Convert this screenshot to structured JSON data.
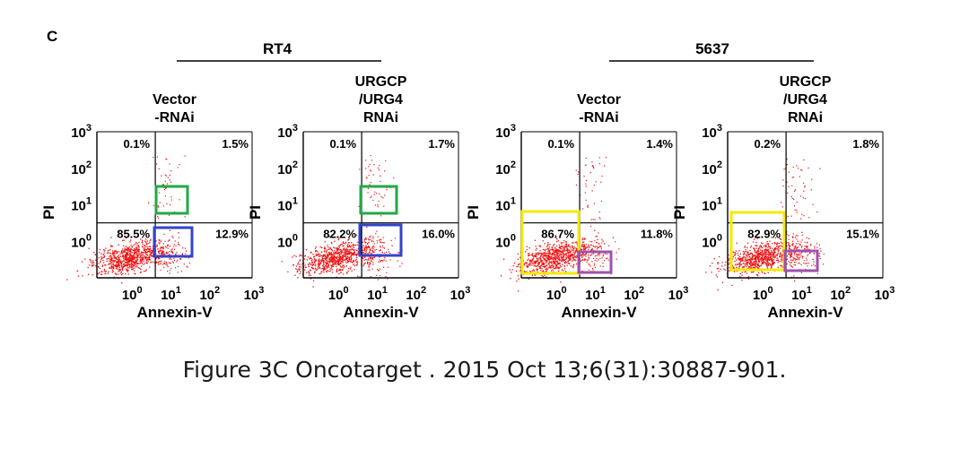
{
  "panel_letter": "C",
  "caption": "Figure 3C Oncotarget . 2015 Oct 13;6(31):30887-901.",
  "colors": {
    "dots": "#ee1111",
    "green_box": "#22aa44",
    "blue_box": "#3344cc",
    "yellow_box": "#f5ea00",
    "purple_box": "#a050b0"
  },
  "groups": [
    {
      "label": "RT4"
    },
    {
      "label": "5637"
    }
  ],
  "chart_data": [
    {
      "type": "scatter",
      "group": "RT4",
      "title_lines": [
        "Vector",
        "-RNAi"
      ],
      "xlabel": "Annexin-V",
      "ylabel": "PI",
      "x_scale": "log",
      "y_scale": "log",
      "xlim": [
        0.1,
        1000
      ],
      "ylim": [
        0.1,
        1000
      ],
      "x_ticks": [
        "10^0",
        "10^1",
        "10^2",
        "10^3"
      ],
      "y_ticks": [
        "10^0",
        "10^1",
        "10^2",
        "10^3"
      ],
      "quadrants": {
        "upper_left": "0.1%",
        "upper_right": "1.5%",
        "lower_left": "85.5%",
        "lower_right": "12.9%"
      },
      "highlight_boxes": [
        "green",
        "blue"
      ]
    },
    {
      "type": "scatter",
      "group": "RT4",
      "title_lines": [
        "URGCP",
        "/URG4",
        "RNAi"
      ],
      "xlabel": "Annexin-V",
      "ylabel": "PI",
      "x_scale": "log",
      "y_scale": "log",
      "xlim": [
        0.1,
        1000
      ],
      "ylim": [
        0.1,
        1000
      ],
      "x_ticks": [
        "10^0",
        "10^1",
        "10^2",
        "10^3"
      ],
      "y_ticks": [
        "10^0",
        "10^1",
        "10^2",
        "10^3"
      ],
      "quadrants": {
        "upper_left": "0.1%",
        "upper_right": "1.7%",
        "lower_left": "82.2%",
        "lower_right": "16.0%"
      },
      "highlight_boxes": [
        "green",
        "blue"
      ]
    },
    {
      "type": "scatter",
      "group": "5637",
      "title_lines": [
        "Vector",
        "-RNAi"
      ],
      "xlabel": "Annexin-V",
      "ylabel": "PI",
      "x_scale": "log",
      "y_scale": "log",
      "xlim": [
        0.1,
        1000
      ],
      "ylim": [
        0.1,
        1000
      ],
      "x_ticks": [
        "10^0",
        "10^1",
        "10^2",
        "10^3"
      ],
      "y_ticks": [
        "10^0",
        "10^1",
        "10^2",
        "10^3"
      ],
      "quadrants": {
        "upper_left": "0.1%",
        "upper_right": "1.4%",
        "lower_left": "86.7%",
        "lower_right": "11.8%"
      },
      "highlight_boxes": [
        "yellow",
        "purple"
      ]
    },
    {
      "type": "scatter",
      "group": "5637",
      "title_lines": [
        "URGCP",
        "/URG4",
        "RNAi"
      ],
      "xlabel": "Annexin-V",
      "ylabel": "PI",
      "x_scale": "log",
      "y_scale": "log",
      "xlim": [
        0.1,
        1000
      ],
      "ylim": [
        0.1,
        1000
      ],
      "x_ticks": [
        "10^0",
        "10^1",
        "10^2",
        "10^3"
      ],
      "y_ticks": [
        "10^0",
        "10^1",
        "10^2",
        "10^3"
      ],
      "quadrants": {
        "upper_left": "0.2%",
        "upper_right": "1.8%",
        "lower_left": "82.9%",
        "lower_right": "15.1%"
      },
      "highlight_boxes": [
        "yellow",
        "purple"
      ]
    }
  ]
}
